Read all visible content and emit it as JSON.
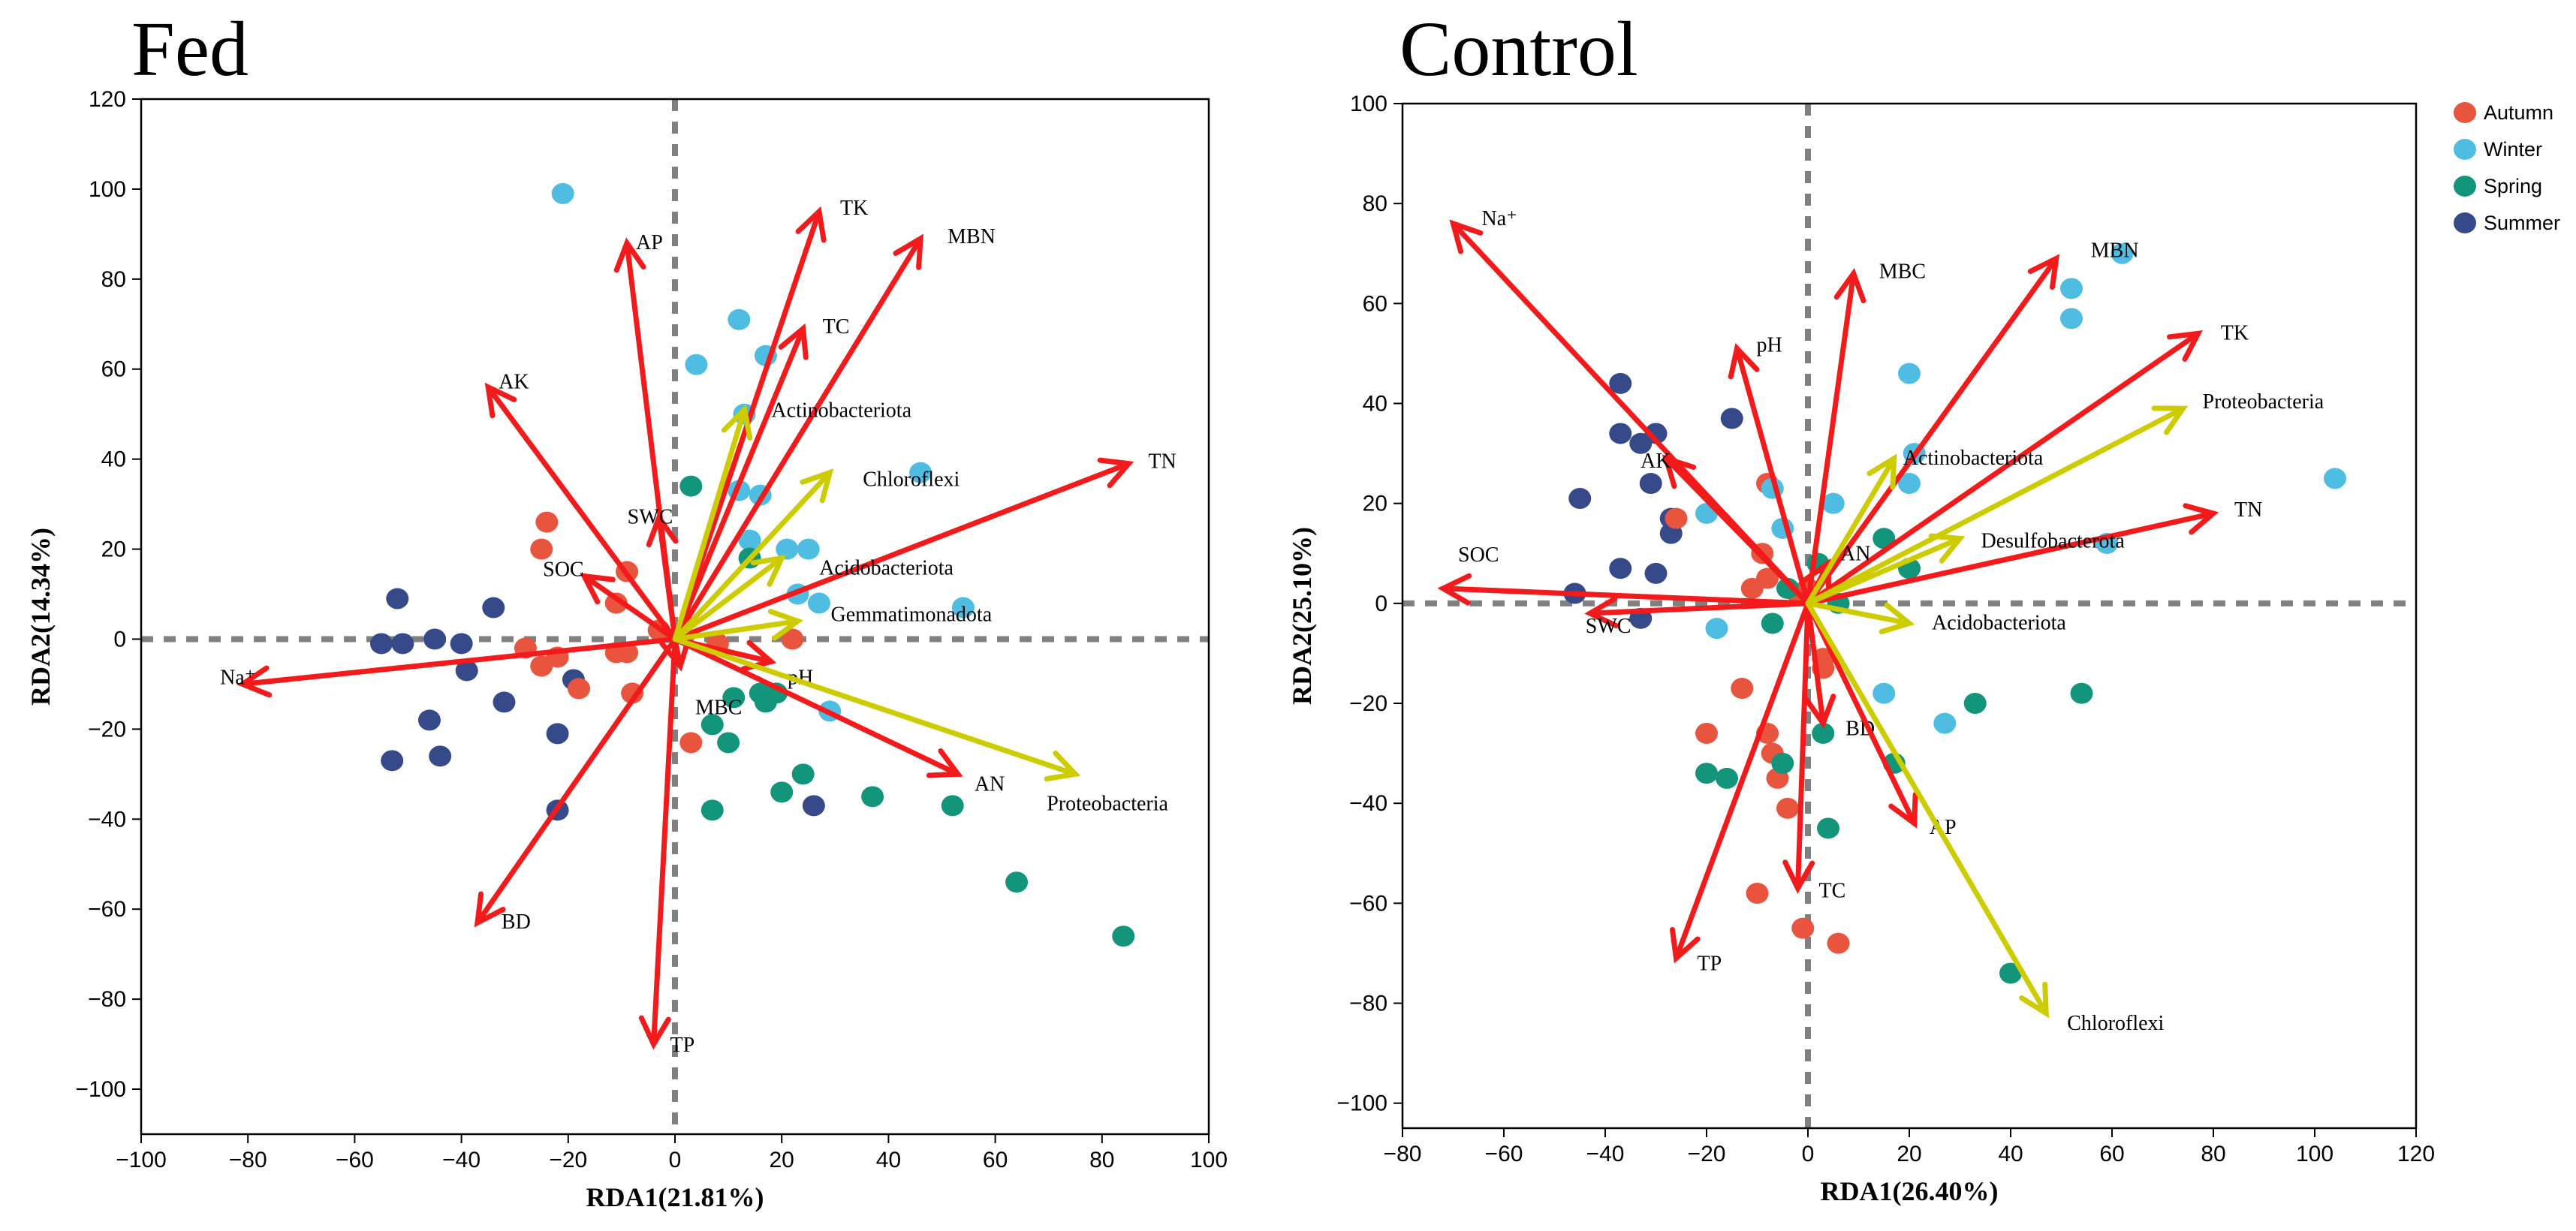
{
  "chart_data": [
    {
      "type": "scatter",
      "title": "Fed",
      "xlabel": "RDA1(21.81%)",
      "ylabel": "RDA2(14.34%)",
      "xlim": [
        -100,
        100
      ],
      "ylim": [
        -110,
        120
      ],
      "xticks": [
        -100,
        -80,
        -60,
        -40,
        -20,
        0,
        20,
        40,
        60,
        80,
        100
      ],
      "yticks": [
        -100,
        -80,
        -60,
        -40,
        -20,
        0,
        20,
        40,
        60,
        80,
        100,
        120
      ],
      "points": {
        "Autumn": [
          [
            -24,
            26
          ],
          [
            -25,
            20
          ],
          [
            -9,
            15
          ],
          [
            -11,
            8
          ],
          [
            -3,
            2
          ],
          [
            -28,
            -2
          ],
          [
            -22,
            -4
          ],
          [
            -25,
            -6
          ],
          [
            -11,
            -3
          ],
          [
            -9,
            -3
          ],
          [
            -8,
            -12
          ],
          [
            -18,
            -11
          ],
          [
            8,
            -1
          ],
          [
            22,
            0
          ],
          [
            3,
            -23
          ]
        ],
        "Winter": [
          [
            -21,
            99
          ],
          [
            12,
            71
          ],
          [
            4,
            61
          ],
          [
            17,
            63
          ],
          [
            13,
            50
          ],
          [
            12,
            33
          ],
          [
            16,
            32
          ],
          [
            46,
            37
          ],
          [
            14,
            22
          ],
          [
            21,
            20
          ],
          [
            25,
            20
          ],
          [
            23,
            10
          ],
          [
            27,
            8
          ],
          [
            54,
            7
          ],
          [
            29,
            -16
          ]
        ],
        "Spring": [
          [
            3,
            34
          ],
          [
            14,
            18
          ],
          [
            7,
            -19
          ],
          [
            11,
            -13
          ],
          [
            16,
            -12
          ],
          [
            19,
            -12
          ],
          [
            17,
            -14
          ],
          [
            10,
            -23
          ],
          [
            24,
            -30
          ],
          [
            37,
            -35
          ],
          [
            20,
            -34
          ],
          [
            52,
            -37
          ],
          [
            7,
            -38
          ],
          [
            64,
            -54
          ],
          [
            84,
            -66
          ]
        ],
        "Summer": [
          [
            -52,
            9
          ],
          [
            -34,
            7
          ],
          [
            -55,
            -1
          ],
          [
            -51,
            -1
          ],
          [
            -45,
            0
          ],
          [
            -40,
            -1
          ],
          [
            -39,
            -7
          ],
          [
            -19,
            -9
          ],
          [
            -46,
            -18
          ],
          [
            -32,
            -14
          ],
          [
            -22,
            -21
          ],
          [
            -53,
            -27
          ],
          [
            -44,
            -26
          ],
          [
            -22,
            -38
          ],
          [
            26,
            -37
          ]
        ]
      },
      "vectors": [
        {
          "label": "AP",
          "x": -9,
          "y": 88,
          "color": "red"
        },
        {
          "label": "AK",
          "x": -35,
          "y": 56,
          "color": "red"
        },
        {
          "label": "TK",
          "x": 27,
          "y": 95,
          "color": "red"
        },
        {
          "label": "MBN",
          "x": 46,
          "y": 89,
          "color": "red"
        },
        {
          "label": "TC",
          "x": 24,
          "y": 69,
          "color": "red"
        },
        {
          "label": "TN",
          "x": 85,
          "y": 39,
          "color": "red"
        },
        {
          "label": "SWC",
          "x": -3,
          "y": 27,
          "color": "red"
        },
        {
          "label": "SOC",
          "x": -17,
          "y": 14,
          "color": "red"
        },
        {
          "label": "Na⁺",
          "x": -81,
          "y": -10,
          "color": "red"
        },
        {
          "label": "pH",
          "x": 18,
          "y": -5,
          "color": "red"
        },
        {
          "label": "MBC",
          "x": 1,
          "y": -6,
          "color": "red"
        },
        {
          "label": "AN",
          "x": 53,
          "y": -30,
          "color": "red"
        },
        {
          "label": "BD",
          "x": -37,
          "y": -63,
          "color": "red"
        },
        {
          "label": "TP",
          "x": -4,
          "y": -90,
          "color": "red"
        },
        {
          "label": "Actinobacteriota",
          "x": 13,
          "y": 51,
          "color": "yellow"
        },
        {
          "label": "Chloroflexi",
          "x": 29,
          "y": 37,
          "color": "yellow"
        },
        {
          "label": "Acidobacteriota",
          "x": 20,
          "y": 18,
          "color": "yellow"
        },
        {
          "label": "Gemmatimonadota",
          "x": 23,
          "y": 4,
          "color": "yellow"
        },
        {
          "label": "Proteobacteria",
          "x": 75,
          "y": -30,
          "color": "yellow"
        }
      ]
    },
    {
      "type": "scatter",
      "title": "Control",
      "xlabel": "RDA1(26.40%)",
      "ylabel": "RDA2(25.10%)",
      "xlim": [
        -80,
        120
      ],
      "ylim": [
        -105,
        100
      ],
      "xticks": [
        -80,
        -60,
        -40,
        -20,
        0,
        20,
        40,
        60,
        80,
        100,
        120
      ],
      "yticks": [
        -100,
        -80,
        -60,
        -40,
        -20,
        0,
        20,
        40,
        60,
        80,
        100
      ],
      "points": {
        "Autumn": [
          [
            -26,
            17
          ],
          [
            -8,
            24
          ],
          [
            -9,
            10
          ],
          [
            -11,
            3
          ],
          [
            -8,
            5
          ],
          [
            -4,
            3
          ],
          [
            -2,
            2
          ],
          [
            0,
            3
          ],
          [
            3,
            -11
          ],
          [
            3,
            -13
          ],
          [
            -13,
            -17
          ],
          [
            -20,
            -26
          ],
          [
            -8,
            -26
          ],
          [
            -7,
            -30
          ],
          [
            -6,
            -35
          ],
          [
            -4,
            -41
          ],
          [
            -10,
            -58
          ],
          [
            -1,
            -65
          ],
          [
            6,
            -68
          ]
        ],
        "Winter": [
          [
            -7,
            23
          ],
          [
            -5,
            15
          ],
          [
            -20,
            18
          ],
          [
            5,
            20
          ],
          [
            20,
            46
          ],
          [
            21,
            30
          ],
          [
            20,
            24
          ],
          [
            52,
            63
          ],
          [
            52,
            57
          ],
          [
            62,
            70
          ],
          [
            104,
            25
          ],
          [
            59,
            12
          ],
          [
            -18,
            -5
          ],
          [
            15,
            -18
          ],
          [
            27,
            -24
          ]
        ],
        "Spring": [
          [
            -7,
            -4
          ],
          [
            2,
            8
          ],
          [
            15,
            13
          ],
          [
            20,
            7
          ],
          [
            6,
            0
          ],
          [
            -4,
            3
          ],
          [
            -20,
            -34
          ],
          [
            -16,
            -35
          ],
          [
            -5,
            -32
          ],
          [
            3,
            -26
          ],
          [
            17,
            -32
          ],
          [
            33,
            -20
          ],
          [
            54,
            -18
          ],
          [
            4,
            -45
          ],
          [
            40,
            -74
          ]
        ],
        "Summer": [
          [
            -37,
            44
          ],
          [
            -15,
            37
          ],
          [
            -37,
            34
          ],
          [
            -33,
            32
          ],
          [
            -30,
            34
          ],
          [
            -31,
            24
          ],
          [
            -45,
            21
          ],
          [
            -27,
            17
          ],
          [
            -27,
            14
          ],
          [
            -37,
            7
          ],
          [
            -30,
            6
          ],
          [
            -46,
            2
          ],
          [
            -33,
            -3
          ]
        ]
      },
      "vectors": [
        {
          "label": "Na⁺",
          "x": -70,
          "y": 76,
          "color": "red"
        },
        {
          "label": "MBN",
          "x": 49,
          "y": 69,
          "color": "red"
        },
        {
          "label": "MBC",
          "x": 9,
          "y": 66,
          "color": "red"
        },
        {
          "label": "pH",
          "x": -14,
          "y": 51,
          "color": "red"
        },
        {
          "label": "TK",
          "x": 77,
          "y": 54,
          "color": "red"
        },
        {
          "label": "AK",
          "x": -28,
          "y": 29,
          "color": "red"
        },
        {
          "label": "TN",
          "x": 80,
          "y": 18,
          "color": "red"
        },
        {
          "label": "AN",
          "x": 4,
          "y": 8,
          "color": "red"
        },
        {
          "label": "SOC",
          "x": -72,
          "y": 3,
          "color": "red"
        },
        {
          "label": "SWC",
          "x": -43,
          "y": -2,
          "color": "red"
        },
        {
          "label": "BD",
          "x": 3,
          "y": -24,
          "color": "red"
        },
        {
          "label": "AP",
          "x": 21,
          "y": -44,
          "color": "red"
        },
        {
          "label": "TC",
          "x": -2,
          "y": -57,
          "color": "red"
        },
        {
          "label": "TP",
          "x": -26,
          "y": -71,
          "color": "red"
        },
        {
          "label": "Proteobacteria",
          "x": 74,
          "y": 39,
          "color": "yellow"
        },
        {
          "label": "Actinobacteriota",
          "x": 17,
          "y": 29,
          "color": "yellow"
        },
        {
          "label": "Desulfobacterota",
          "x": 30,
          "y": 13,
          "color": "yellow"
        },
        {
          "label": "Acidobacteriota",
          "x": 20,
          "y": -4,
          "color": "yellow"
        },
        {
          "label": "Chloroflexi",
          "x": 47,
          "y": -82,
          "color": "yellow"
        }
      ]
    }
  ],
  "legend": {
    "placement": "top-right",
    "items": [
      {
        "label": "Autumn",
        "color": "#e8543e"
      },
      {
        "label": "Winter",
        "color": "#4fbde2"
      },
      {
        "label": "Spring",
        "color": "#12957a"
      },
      {
        "label": "Summer",
        "color": "#364a8a"
      }
    ]
  },
  "colors": {
    "env_arrow": "#f21a1a",
    "taxa_arrow": "#cccc00",
    "zero_line": "#808080"
  }
}
